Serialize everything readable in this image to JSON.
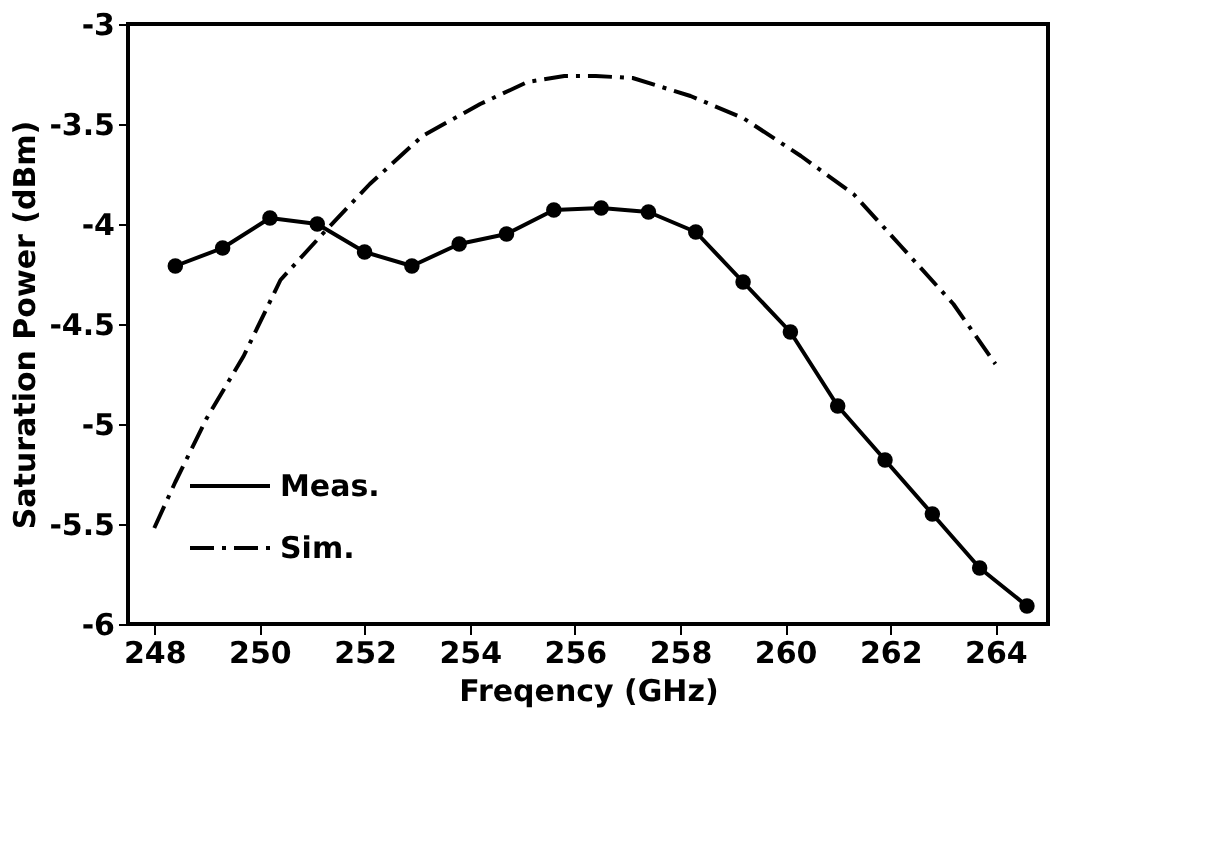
{
  "chart_data": {
    "type": "line",
    "xlabel": "Freqency (GHz)",
    "ylabel": "Saturation Power (dBm)",
    "xlim": [
      247.5,
      265
    ],
    "xticks": [
      248,
      250,
      252,
      254,
      256,
      258,
      260,
      262,
      264
    ],
    "ylim": [
      -6,
      -3
    ],
    "yticks": [
      -6,
      -5.5,
      -5,
      -4.5,
      -4,
      -3.5,
      -3
    ],
    "grid": false,
    "legend": "bottom left",
    "series": [
      {
        "name": "Meas.",
        "color": "#000000",
        "marker": "circle",
        "line_style": "solid",
        "x": [
          248.4,
          249.3,
          250.2,
          251.1,
          252.0,
          252.9,
          253.8,
          254.7,
          255.6,
          256.5,
          257.4,
          258.3,
          259.2,
          260.1,
          261.0,
          261.9,
          262.8,
          263.7,
          264.6
        ],
        "values": [
          -4.21,
          -4.12,
          -3.97,
          -4.0,
          -4.14,
          -4.21,
          -4.1,
          -4.05,
          -3.93,
          -3.92,
          -3.94,
          -4.04,
          -4.29,
          -4.54,
          -4.91,
          -5.18,
          -5.45,
          -5.72,
          -5.91
        ]
      },
      {
        "name": "Sim.",
        "color": "#000000",
        "marker": "none",
        "line_style": "dashdot",
        "x": [
          248.0,
          248.4,
          249.0,
          249.7,
          250.4,
          251.2,
          252.1,
          253.1,
          254.2,
          255.1,
          255.8,
          256.4,
          257.1,
          258.2,
          259.2,
          260.3,
          261.3,
          262.2,
          263.2,
          264.0
        ],
        "values": [
          -5.52,
          -5.29,
          -4.97,
          -4.66,
          -4.28,
          -4.05,
          -3.8,
          -3.56,
          -3.4,
          -3.29,
          -3.26,
          -3.26,
          -3.27,
          -3.36,
          -3.47,
          -3.66,
          -3.85,
          -4.11,
          -4.4,
          -4.7
        ]
      }
    ]
  }
}
